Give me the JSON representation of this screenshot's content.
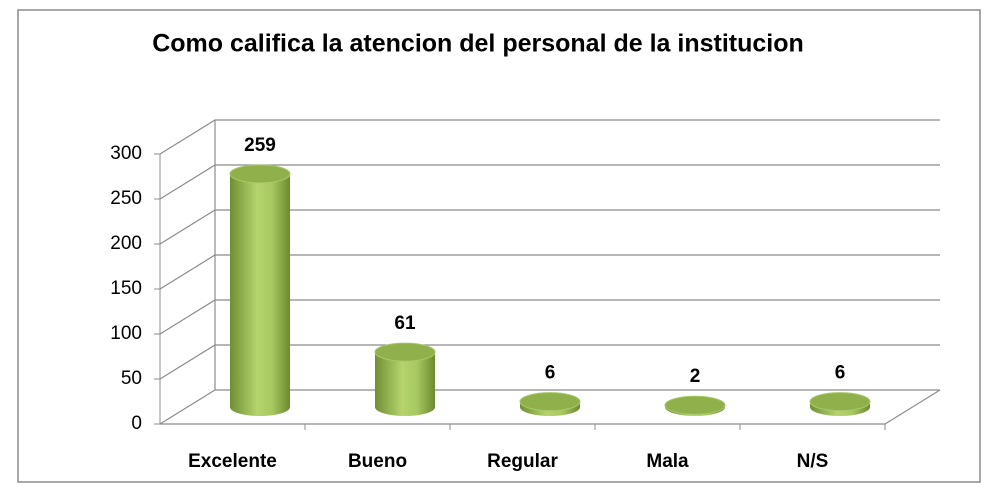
{
  "chart_data": {
    "type": "bar",
    "title": "Como califica la atencion del personal de la institucion",
    "categories": [
      "Excelente",
      "Bueno",
      "Regular",
      "Mala",
      "N/S"
    ],
    "values": [
      259,
      61,
      6,
      2,
      6
    ],
    "color": "#9bbb59",
    "ylim": [
      0,
      300
    ],
    "yticks": [
      0,
      50,
      100,
      150,
      200,
      250,
      300
    ],
    "grid": true
  }
}
